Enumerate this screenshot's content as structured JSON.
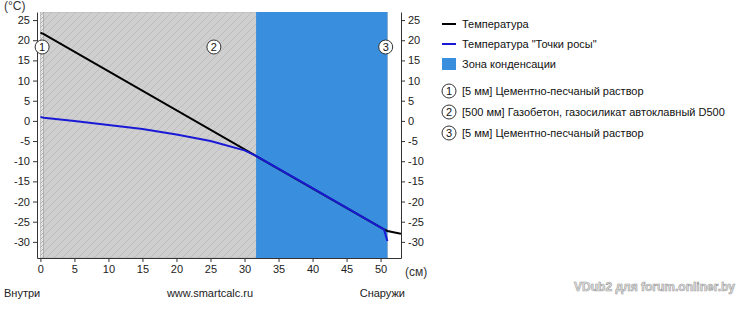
{
  "chart_data": {
    "type": "line",
    "x_label": "(см)",
    "y_label": "(°С)",
    "annotations": [
      "Внутри",
      "www.smartcalc.ru",
      "Снаружи",
      "VDub2 для forum.onliner.by"
    ],
    "xlim": [
      -0.5,
      53
    ],
    "xticks": [
      0,
      5,
      10,
      15,
      20,
      25,
      30,
      35,
      40,
      45,
      50
    ],
    "ylim": [
      -34,
      27
    ],
    "yticks": [
      25,
      20,
      15,
      10,
      5,
      0,
      -5,
      -10,
      -15,
      -20,
      -25,
      -30
    ],
    "y2lim": [
      -34,
      27
    ],
    "y2ticks": [
      25,
      20,
      15,
      10,
      5,
      0,
      -5,
      -10,
      -15,
      -20,
      -25,
      -30
    ],
    "grid": false,
    "legend": "right",
    "series": [
      {
        "name": "Температура",
        "color": "#000000",
        "line_style": "solid",
        "x": [
          0,
          0.5,
          50.5,
          51,
          53
        ],
        "values": [
          21.9,
          21.5,
          -26.9,
          -27.3,
          -28
        ]
      },
      {
        "name": "Температура \"Точки росы\"",
        "color": "#1a1ad6",
        "line_style": "solid",
        "x": [
          0,
          0.5,
          5,
          10,
          15,
          20,
          25,
          30,
          31.7,
          40,
          50.5,
          51
        ],
        "values": [
          1,
          0.8,
          0,
          -1,
          -2,
          -3.4,
          -5,
          -7.3,
          -8.7,
          -16.7,
          -26.9,
          -29.8
        ]
      }
    ],
    "condensation_zone": {
      "name": "Зона конденсации",
      "color": "#3a8ede",
      "x": [
        31.7,
        51
      ]
    },
    "layers": [
      {
        "number": 1,
        "label": "[5 мм] Цементно-песчаный раствор",
        "x": [
          0,
          0.5
        ]
      },
      {
        "number": 2,
        "label": "[500 мм] Газобетон, газосиликат автоклавный D500",
        "x": [
          0.5,
          50.5
        ]
      },
      {
        "number": 3,
        "label": "[5 мм] Цементно-песчаный раствор",
        "x": [
          50.5,
          51
        ]
      }
    ]
  }
}
